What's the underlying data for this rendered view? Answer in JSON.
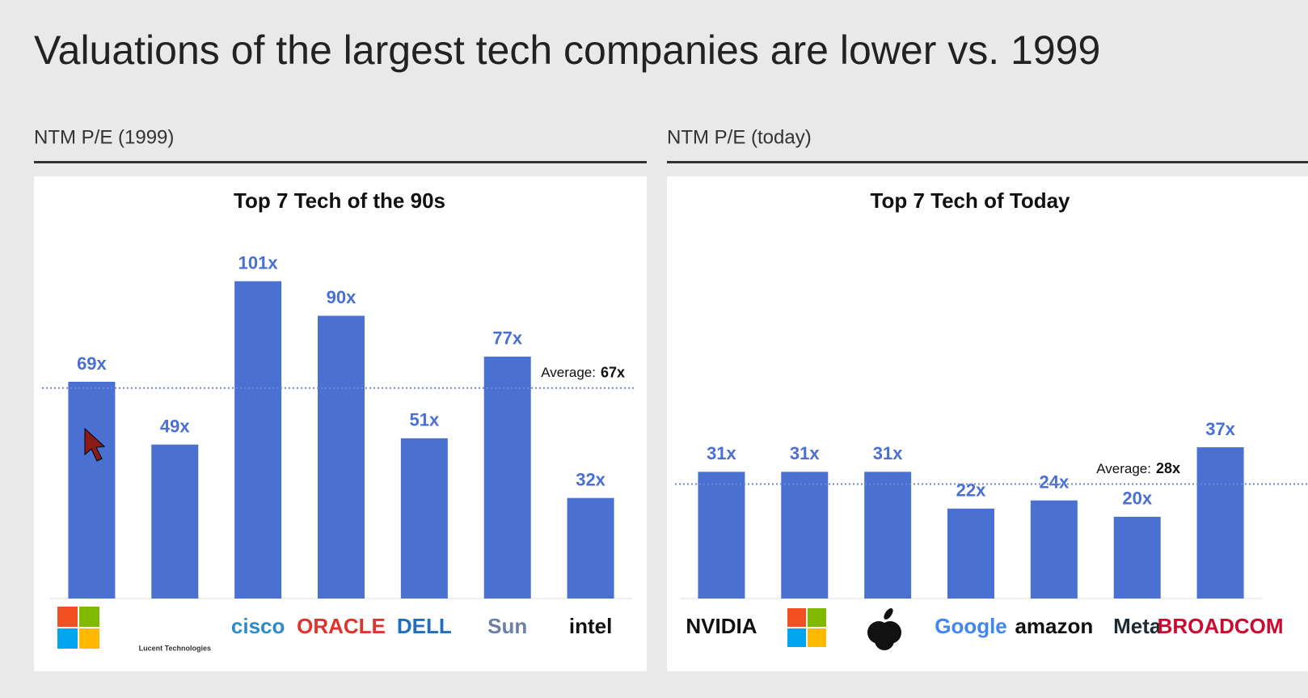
{
  "title": "Valuations of the largest tech companies are lower vs. 1999",
  "chart_data": [
    {
      "type": "bar",
      "section_label": "NTM P/E (1999)",
      "title": "Top 7 Tech of the 90s",
      "categories": [
        null,
        "Lucent Technologies",
        "cisco",
        "ORACLE",
        "DELL",
        "Sun",
        "intel"
      ],
      "category_colors": [
        "#777777",
        "#333333",
        "#2e8bc9",
        "#e0332b",
        "#1f6fc0",
        "#6b7fa8",
        "#111111"
      ],
      "values": [
        69,
        49,
        101,
        90,
        51,
        77,
        32
      ],
      "value_labels": [
        "69x",
        "49x",
        "101x",
        "90x",
        "51x",
        "77x",
        "32x"
      ],
      "color": "#4a70d1",
      "ylim": [
        0,
        121
      ],
      "average_text": "Average:",
      "average": 67,
      "average_label": "67x"
    },
    {
      "type": "bar",
      "section_label": "NTM P/E (today)",
      "title": "Top 7 Tech of Today",
      "categories": [
        "NVIDIA",
        null,
        null,
        "Google",
        "amazon",
        "Meta",
        "BROADCOM"
      ],
      "category_colors": [
        "#111111",
        "#777777",
        "#111111",
        "#4285f4",
        "#111111",
        "#1c2b33",
        "#cc092f"
      ],
      "values": [
        31,
        31,
        31,
        22,
        24,
        20,
        37
      ],
      "value_labels": [
        "31x",
        "31x",
        "31x",
        "22x",
        "24x",
        "20x",
        "37x"
      ],
      "color": "#4a70d1",
      "ylim": [
        0,
        93
      ],
      "average_text": "Average:",
      "average": 28,
      "average_label": "28x"
    }
  ]
}
